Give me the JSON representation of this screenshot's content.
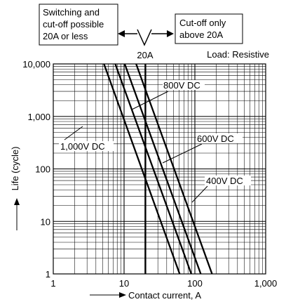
{
  "chart_data": {
    "type": "line",
    "x_scale": "log",
    "y_scale": "log",
    "xlim": [
      1,
      1000
    ],
    "ylim": [
      1,
      10000
    ],
    "xlabel": "Contact current, A",
    "ylabel": "Life (cycle)",
    "x_ticks": [
      "1",
      "10",
      "100",
      "1,000"
    ],
    "y_ticks": [
      "10,000",
      "1,000",
      "100",
      "10",
      "1"
    ],
    "grid": true,
    "series": [
      {
        "name": "1,000V DC",
        "points": [
          [
            5.2,
            10000
          ],
          [
            61,
            1
          ]
        ]
      },
      {
        "name": "800V DC",
        "points": [
          [
            7.5,
            10000
          ],
          [
            89,
            1
          ]
        ]
      },
      {
        "name": "600V DC",
        "points": [
          [
            10.2,
            10000
          ],
          [
            121,
            1
          ]
        ]
      },
      {
        "name": "400V DC",
        "points": [
          [
            14.8,
            10000
          ],
          [
            175,
            1
          ]
        ]
      }
    ],
    "reference_line": {
      "x": 20,
      "label": "20A"
    },
    "annotations": {
      "load": "Load: Resistive",
      "left_box": [
        "Switching and",
        "cut-off possible",
        "20A or less"
      ],
      "right_box": [
        "Cut-off only",
        "above 20A"
      ]
    },
    "colors": {
      "line": "#000000",
      "grid": "#000000",
      "background": "#ffffff"
    }
  }
}
